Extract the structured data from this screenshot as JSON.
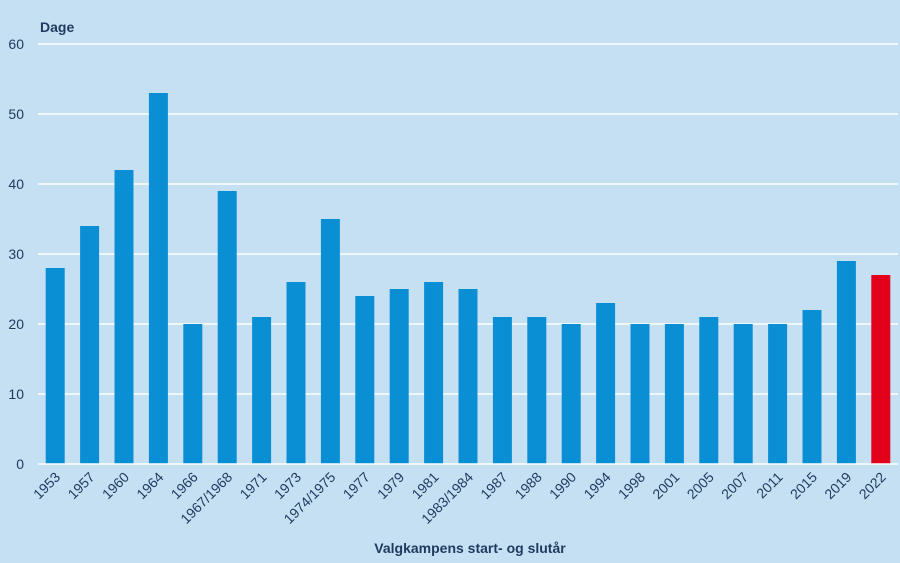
{
  "chart_data": {
    "type": "bar",
    "ylabel": "Dage",
    "xlabel": "Valgkampens start- og slutår",
    "ylim": [
      0,
      60
    ],
    "yticks": [
      0,
      10,
      20,
      30,
      40,
      50,
      60
    ],
    "grid": true,
    "categories": [
      "1953",
      "1957",
      "1960",
      "1964",
      "1966",
      "1967/1968",
      "1971",
      "1973",
      "1974/1975",
      "1977",
      "1979",
      "1981",
      "1983/1984",
      "1987",
      "1988",
      "1990",
      "1994",
      "1998",
      "2001",
      "2005",
      "2007",
      "2011",
      "2015",
      "2019",
      "2022"
    ],
    "values": [
      28,
      34,
      42,
      53,
      20,
      39,
      21,
      26,
      35,
      24,
      25,
      26,
      25,
      21,
      21,
      20,
      23,
      20,
      20,
      21,
      20,
      20,
      22,
      29,
      27
    ],
    "colors": {
      "bar": "#0a8fd4",
      "highlight": "#e3001b",
      "grid": "#ffffff",
      "axis": "#1f3a5f",
      "background": "#c5dff3"
    },
    "highlight_index": 24
  }
}
